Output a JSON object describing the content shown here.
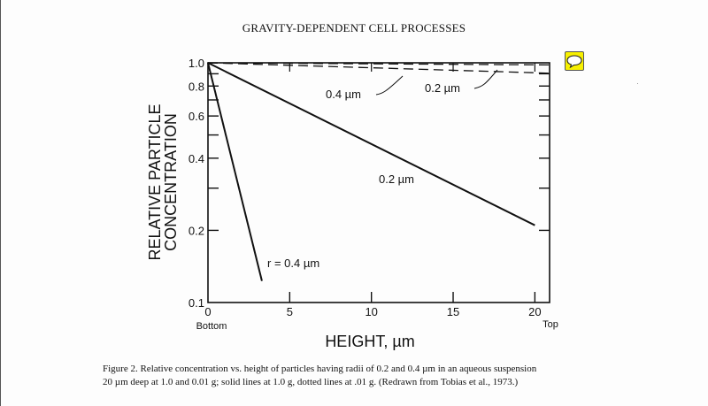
{
  "page": {
    "header": "GRAVITY-DEPENDENT CELL PROCESSES",
    "caption_line1": "Figure 2.  Relative concentration vs. height of particles having radii of 0.2 and 0.4 µm in an aqueous suspension",
    "caption_line2": "20 µm deep at 1.0 and 0.01 g; solid lines at 1.0 g, dotted lines at .01 g.  (Redrawn from Tobias et al., 1973.)",
    "comment_icon": "speech-bubble-icon",
    "comment_icon_color": "#f7f000"
  },
  "chart_data": {
    "type": "line",
    "title": "",
    "xlabel": "HEIGHT, µm",
    "ylabel_line1": "RELATIVE PARTICLE",
    "ylabel_line2": "CONCENTRATION",
    "xlim": [
      0,
      20.9
    ],
    "ylim": [
      0.1,
      1.0
    ],
    "yscale": "log",
    "grid": false,
    "x_ticks": [
      0,
      5,
      10,
      15,
      20
    ],
    "x_tick_labels": [
      "0",
      "5",
      "10",
      "15",
      "20"
    ],
    "x_end_labels": {
      "left": "Bottom",
      "right": "Top"
    },
    "y_ticks": [
      0.1,
      0.2,
      0.3,
      0.4,
      0.5,
      0.6,
      0.7,
      0.8,
      0.9,
      1.0
    ],
    "y_tick_labels": [
      {
        "value": 0.1,
        "label": "0.1"
      },
      {
        "value": 0.2,
        "label": "0.2"
      },
      {
        "value": 0.4,
        "label": "0.4"
      },
      {
        "value": 0.6,
        "label": "0.6"
      },
      {
        "value": 0.8,
        "label": "0.8"
      },
      {
        "value": 1.0,
        "label": "1.0"
      }
    ],
    "series": [
      {
        "name": "0.2 µm at 1.0 g",
        "label": "0.2 µm",
        "style": "solid",
        "x": [
          0,
          20
        ],
        "y": [
          1.0,
          0.21
        ]
      },
      {
        "name": "0.4 µm at 1.0 g",
        "label": "r = 0.4 µm",
        "style": "solid",
        "x": [
          0,
          3.3
        ],
        "y": [
          1.0,
          0.123
        ]
      },
      {
        "name": "0.2 µm at 0.01 g",
        "label": "0.2 µm",
        "style": "dashed",
        "x": [
          0,
          20.9
        ],
        "y": [
          1.0,
          0.98
        ]
      },
      {
        "name": "0.4 µm at 0.01 g",
        "label": "0.4 µm",
        "style": "dashed",
        "x": [
          0,
          20.9
        ],
        "y": [
          1.0,
          0.905
        ]
      }
    ]
  }
}
